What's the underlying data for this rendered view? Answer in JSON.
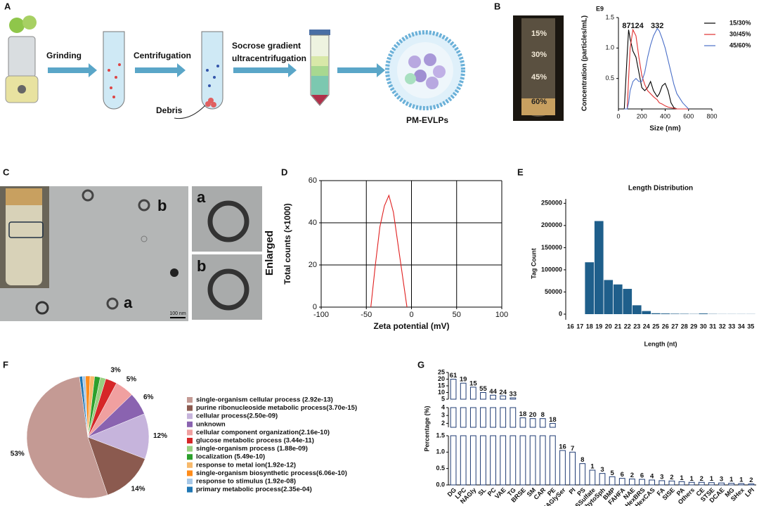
{
  "panel_labels": [
    "A",
    "B",
    "C",
    "D",
    "E",
    "F",
    "G"
  ],
  "workflow": {
    "steps": [
      "Grinding",
      "Centrifugation"
    ],
    "step3_lines": [
      "Socrose gradient",
      "ultracentrifugation"
    ],
    "debris": "Debris",
    "product": "PM-EVLPs"
  },
  "tube_photo": {
    "layers": [
      "15%",
      "30%",
      "45%",
      "60%"
    ]
  },
  "tem": {
    "labels": [
      "b",
      "a"
    ],
    "scale": "100 nm",
    "insets": [
      "a",
      "b"
    ],
    "caption": "Enlarged"
  },
  "chart_data": [
    {
      "type": "line",
      "unit_label": "E9",
      "ylabel": "Concentration (particles/mL)",
      "xlabel": "Size (nm)",
      "x": [
        50,
        75,
        87,
        100,
        124,
        150,
        175,
        200,
        225,
        250,
        275,
        300,
        332,
        350,
        375,
        400,
        425,
        450,
        475,
        500,
        550,
        600
      ],
      "series": [
        {
          "name": "15/30%",
          "color": "#000000",
          "values": [
            0,
            0.9,
            1.3,
            1.15,
            0.95,
            0.85,
            0.6,
            0.35,
            0.3,
            0.35,
            0.45,
            0.3,
            0.2,
            0.25,
            0.38,
            0.42,
            0.3,
            0.1,
            0.02,
            0,
            0,
            0
          ]
        },
        {
          "name": "30/45%",
          "color": "#e03030",
          "values": [
            0,
            0,
            0.5,
            1.0,
            1.3,
            1.2,
            0.85,
            0.55,
            0.4,
            0.3,
            0.25,
            0.2,
            0.15,
            0.1,
            0.08,
            0.05,
            0.03,
            0.02,
            0.01,
            0,
            0,
            0
          ]
        },
        {
          "name": "45/60%",
          "color": "#4a6fc8",
          "values": [
            0,
            0,
            0.1,
            0.3,
            0.45,
            0.5,
            0.45,
            0.45,
            0.6,
            0.85,
            1.05,
            1.2,
            1.32,
            1.28,
            1.15,
            1.0,
            0.8,
            0.6,
            0.4,
            0.25,
            0.1,
            0
          ]
        }
      ],
      "peak_labels": [
        87,
        124,
        332
      ],
      "xlim": [
        0,
        800
      ],
      "xticks": [
        0,
        200,
        400,
        600,
        800
      ],
      "ylim": [
        0,
        1.5
      ],
      "yticks": [
        0.5,
        {
          "value": 1,
          "label": "1.0"
        },
        1.5
      ],
      "legend": "upper right"
    },
    {
      "type": "line",
      "xlabel": "Zeta potential (mV)",
      "ylabel": "Total counts (×1000)",
      "x": [
        -45,
        -40,
        -35,
        -30,
        -25,
        -20,
        -15,
        -10,
        -5
      ],
      "series": [
        {
          "color": "#e02020",
          "values": [
            0,
            20,
            38,
            48,
            53,
            45,
            30,
            15,
            0
          ]
        }
      ],
      "xlim": [
        -100,
        100
      ],
      "xticks": [
        -100,
        -50,
        0,
        50,
        100
      ],
      "ylim": [
        0,
        60
      ],
      "yticks": [
        0,
        20,
        40,
        60
      ],
      "grid": true
    },
    {
      "type": "bar",
      "title": "Length Distribution",
      "xlabel": "Length (nt)",
      "ylabel": "Tag Count",
      "categories": [
        "16",
        "17",
        "18",
        "19",
        "20",
        "21",
        "22",
        "23",
        "24",
        "25",
        "26",
        "27",
        "28",
        "29",
        "30",
        "31",
        "32",
        "33",
        "34",
        "35"
      ],
      "values": [
        0,
        0,
        117000,
        210000,
        77000,
        67000,
        57000,
        20000,
        7000,
        2000,
        1500,
        1000,
        800,
        500,
        1500,
        500,
        300,
        300,
        300,
        300
      ],
      "color": "#1f5f8b",
      "ylim": [
        0,
        260000
      ],
      "yticks": [
        0,
        50000,
        100000,
        150000,
        200000,
        250000
      ]
    },
    {
      "type": "pie",
      "labels": [
        "single-organism cellular process (2.92e-13)",
        "purine ribonucleoside metabolic process(3.70e-15)",
        "cellular process(2.50e-09)",
        "unknown",
        "cellular component organization(2.16e-10)",
        "glucose metabolic process (3.44e-11)",
        "single-organism process (1.88e-09)",
        "localization (5.49e-10)",
        "response to metal ion(1.92e-12)",
        "single-organism biosynthetic process(6.06e-10)",
        "response to stimulus (1.92e-08)",
        "primary metabolic process(2.35e-04)"
      ],
      "values": [
        53,
        14,
        12,
        6,
        5,
        3,
        1.5,
        1.5,
        1.2,
        1.2,
        0.8,
        0.8
      ],
      "value_labels": [
        "53%",
        "14%",
        "12%",
        "6%",
        "5%",
        "3%",
        null,
        null,
        null,
        null,
        null,
        null
      ],
      "colors": [
        "#c49a94",
        "#8b5a4f",
        "#c6b4dc",
        "#8a63b0",
        "#f0a0a0",
        "#d62728",
        "#98d080",
        "#2ca02c",
        "#f7b96b",
        "#ff8c1a",
        "#a6c8e8",
        "#1f77b4"
      ]
    },
    {
      "type": "broken_bar",
      "ylabel": "Percentage (%)",
      "categories": [
        "DG",
        "LPC",
        "NAGly",
        "SL",
        "PC",
        "VAE",
        "TG",
        "BRSE",
        "SM",
        "CAR",
        "PE",
        "NAGlySer",
        "PI",
        "PS",
        "SSulfate",
        "PhytoSph",
        "BMP",
        "FAHFA",
        "NAE",
        "AHexBRS",
        "AHexCAS",
        "FA",
        "SISE",
        "PA",
        "Others",
        "CE",
        "STSE",
        "DCAE",
        "MG",
        "SHex",
        "LPI"
      ],
      "values": [
        20,
        17,
        14,
        10,
        8,
        7.5,
        6,
        2.7,
        2.6,
        2.6,
        2,
        1.05,
        1.0,
        0.65,
        0.45,
        0.35,
        0.25,
        0.2,
        0.18,
        0.17,
        0.15,
        0.13,
        0.12,
        0.1,
        0.08,
        0.08,
        0.07,
        0.06,
        0.05,
        0.04,
        0.03
      ],
      "counts": [
        61,
        19,
        15,
        55,
        44,
        24,
        33,
        18,
        20,
        8,
        18,
        16,
        7,
        8,
        1,
        3,
        5,
        6,
        2,
        6,
        4,
        3,
        2,
        1,
        1,
        2,
        1,
        3,
        1,
        1,
        2
      ],
      "color": "#1f3b73",
      "segments": [
        {
          "ylim": [
            0,
            1.5
          ],
          "yticks": [
            {
              "value": 0,
              "label": "0.0"
            },
            0.5,
            {
              "value": 1,
              "label": "1.0"
            },
            1.5
          ]
        },
        {
          "ylim": [
            1.5,
            4
          ],
          "yticks": [
            2,
            3,
            4
          ]
        },
        {
          "ylim": [
            5,
            25
          ],
          "yticks": [
            5,
            10,
            15,
            20,
            25
          ]
        }
      ]
    }
  ]
}
